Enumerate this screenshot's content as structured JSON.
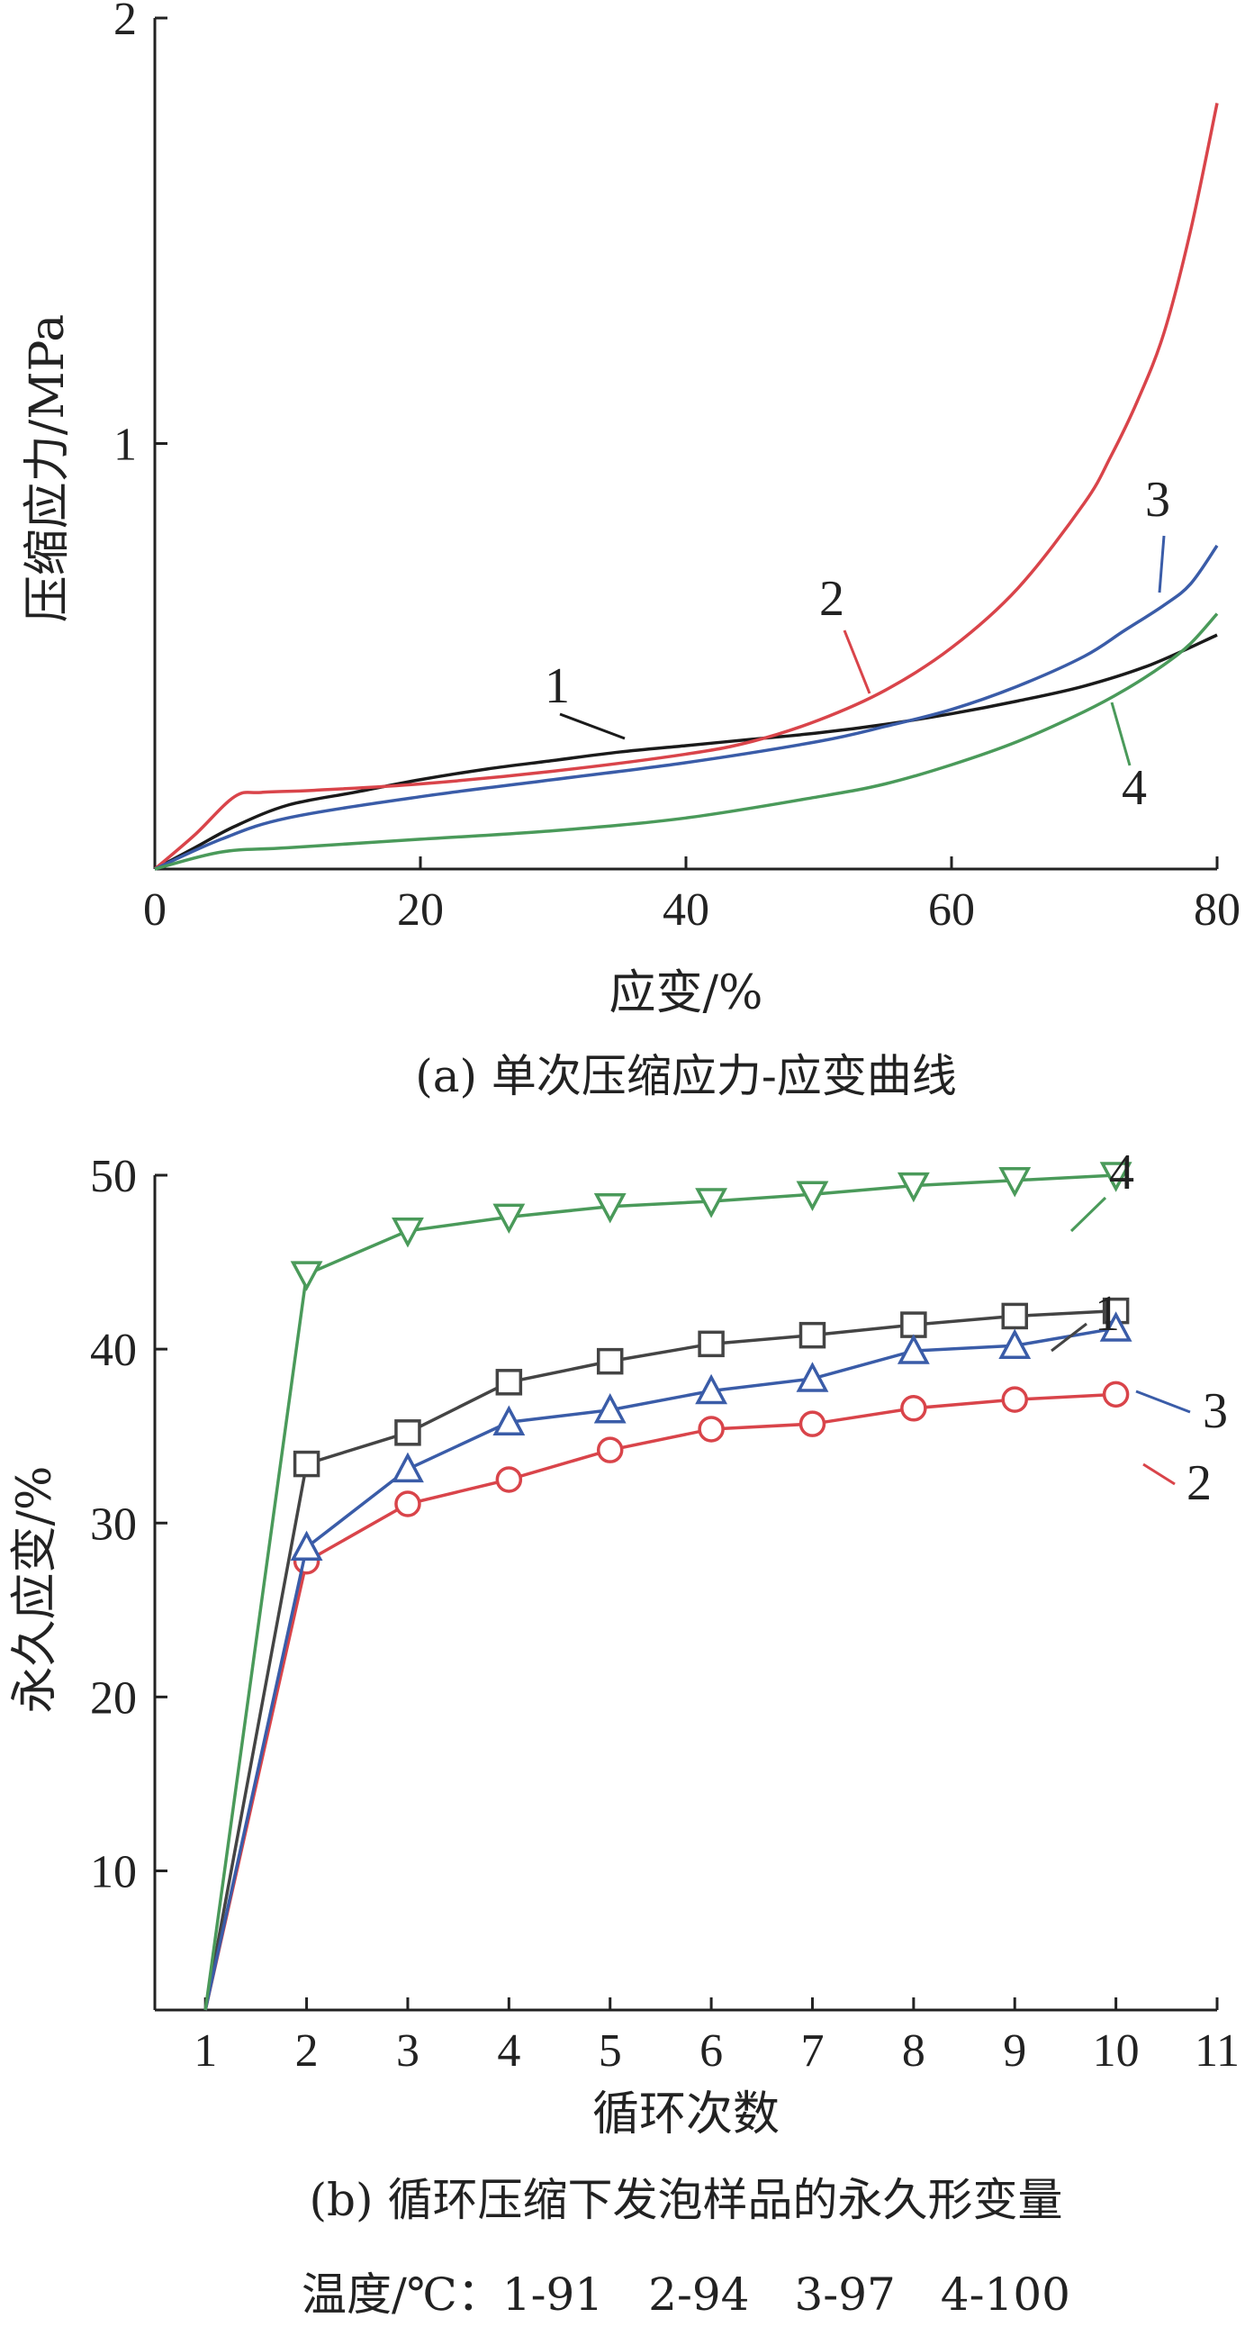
{
  "chart_data": [
    {
      "type": "line",
      "caption": "(a) 单次压缩应力-应变曲线",
      "xlabel": "应变/%",
      "ylabel": "压缩应力/MPa",
      "xlim": [
        0,
        80
      ],
      "ylim": [
        0,
        2
      ],
      "xticks": [
        "0",
        "20",
        "40",
        "60",
        "80"
      ],
      "yticks": [
        "1",
        "2"
      ],
      "grid": false,
      "series": [
        {
          "name": "1",
          "color": "#1a1a1a",
          "x": [
            0,
            3,
            6,
            10,
            15,
            20,
            25,
            30,
            35,
            40,
            45,
            50,
            55,
            60,
            65,
            70,
            75,
            80
          ],
          "y": [
            0,
            0.05,
            0.1,
            0.15,
            0.18,
            0.21,
            0.235,
            0.255,
            0.275,
            0.29,
            0.305,
            0.32,
            0.34,
            0.365,
            0.395,
            0.43,
            0.48,
            0.55
          ]
        },
        {
          "name": "2",
          "color": "#d9444a",
          "x": [
            0,
            3,
            6,
            8,
            12,
            20,
            30,
            40,
            45,
            50,
            55,
            60,
            65,
            70,
            72,
            74,
            76,
            78,
            80
          ],
          "y": [
            0,
            0.08,
            0.17,
            0.18,
            0.185,
            0.2,
            0.23,
            0.27,
            0.3,
            0.35,
            0.42,
            0.52,
            0.66,
            0.86,
            0.97,
            1.1,
            1.26,
            1.5,
            1.8
          ]
        },
        {
          "name": "3",
          "color": "#3a5ca8",
          "x": [
            0,
            5,
            10,
            20,
            30,
            40,
            50,
            55,
            60,
            65,
            70,
            73,
            76,
            78,
            80
          ],
          "y": [
            0,
            0.07,
            0.12,
            0.17,
            0.21,
            0.25,
            0.3,
            0.335,
            0.375,
            0.43,
            0.5,
            0.56,
            0.62,
            0.67,
            0.76
          ]
        },
        {
          "name": "4",
          "color": "#4a9a5a",
          "x": [
            0,
            5,
            10,
            20,
            30,
            40,
            50,
            55,
            60,
            65,
            70,
            73,
            76,
            78,
            80
          ],
          "y": [
            0,
            0.04,
            0.05,
            0.07,
            0.09,
            0.12,
            0.17,
            0.2,
            0.245,
            0.3,
            0.37,
            0.42,
            0.48,
            0.53,
            0.6
          ]
        }
      ]
    },
    {
      "type": "line",
      "caption": "(b) 循环压缩下发泡样品的永久形变量",
      "xlabel": "循环次数",
      "ylabel": "永久应变/%",
      "xlim": [
        0.5,
        11
      ],
      "ylim": [
        2,
        50
      ],
      "xticks": [
        "1",
        "2",
        "3",
        "4",
        "5",
        "6",
        "7",
        "8",
        "9",
        "10",
        "11"
      ],
      "yticks": [
        "10",
        "20",
        "30",
        "40",
        "50"
      ],
      "grid": false,
      "x": [
        1,
        2,
        3,
        4,
        5,
        6,
        7,
        8,
        9,
        10
      ],
      "series": [
        {
          "name": "1",
          "color": "#444444",
          "marker": "square",
          "values": [
            2,
            33.4,
            35.2,
            38.1,
            39.3,
            40.3,
            40.8,
            41.4,
            41.9,
            42.2
          ]
        },
        {
          "name": "2",
          "color": "#d9444a",
          "marker": "circle",
          "values": [
            2,
            27.8,
            31.1,
            32.5,
            34.2,
            35.4,
            35.7,
            36.6,
            37.1,
            37.4
          ]
        },
        {
          "name": "3",
          "color": "#3a5ca8",
          "marker": "triangle-up",
          "values": [
            2,
            28.6,
            33.1,
            35.8,
            36.5,
            37.6,
            38.3,
            39.9,
            40.2,
            41.2
          ]
        },
        {
          "name": "4",
          "color": "#4a9a5a",
          "marker": "triangle-down",
          "values": [
            2,
            44.3,
            46.8,
            47.6,
            48.2,
            48.5,
            48.9,
            49.4,
            49.7,
            50.0
          ]
        }
      ]
    }
  ],
  "footer": "温度/℃：1-91　2-94　3-97　4-100"
}
